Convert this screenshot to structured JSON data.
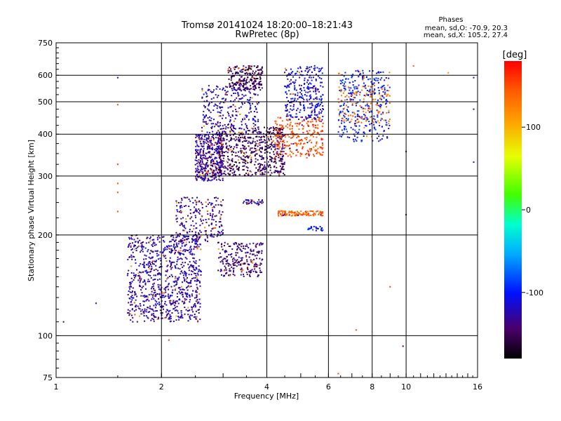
{
  "chart_data": {
    "type": "scatter",
    "title": "Tromsø 20141024 18:20:00–18:21:43",
    "subtitle": "RwPretec (8p)",
    "xlabel": "Frequency [MHz]",
    "ylabel": "Stationary phase Virtual Height [km]",
    "x_scale": "log",
    "y_scale": "log",
    "xlim": [
      1,
      16
    ],
    "ylim": [
      75,
      750
    ],
    "x_ticks": [
      1,
      2,
      4,
      6,
      8,
      10,
      16
    ],
    "x_tick_labels": [
      "1",
      "2",
      "4",
      "6",
      "8",
      "10",
      "16"
    ],
    "y_ticks": [
      75,
      100,
      200,
      300,
      400,
      500,
      600,
      750
    ],
    "y_tick_labels": [
      "75",
      "100",
      "200",
      "300",
      "400",
      "500",
      "600",
      "750"
    ],
    "grid": true,
    "legend": {
      "title": "Phases",
      "line_o": "mean, sd,O: -70.9, 20.3",
      "line_x": "mean, sd,X: 105.2, 27.4",
      "placement": "top-right"
    },
    "colorbar": {
      "label": "[deg]",
      "range": [
        -180,
        180
      ],
      "ticks": [
        100,
        0,
        -100
      ],
      "tick_labels": [
        "100",
        "0",
        "-100"
      ],
      "placement": "right"
    },
    "clusters": [
      {
        "f": [
          1.6,
          2.6
        ],
        "h": [
          110,
          200
        ],
        "phase": -125,
        "count": 900
      },
      {
        "f": [
          2.2,
          3.0
        ],
        "h": [
          190,
          260
        ],
        "phase": -130,
        "count": 220
      },
      {
        "f": [
          2.9,
          3.9
        ],
        "h": [
          150,
          190
        ],
        "phase": -140,
        "count": 240
      },
      {
        "f": [
          2.5,
          3.0
        ],
        "h": [
          290,
          400
        ],
        "phase": -130,
        "count": 420
      },
      {
        "f": [
          2.9,
          4.5
        ],
        "h": [
          300,
          420
        ],
        "phase": -148,
        "count": 600
      },
      {
        "f": [
          2.6,
          3.8
        ],
        "h": [
          400,
          560
        ],
        "phase": -120,
        "count": 280
      },
      {
        "f": [
          3.1,
          3.9
        ],
        "h": [
          540,
          640
        ],
        "phase": -150,
        "count": 220
      },
      {
        "f": [
          4.2,
          5.8
        ],
        "h": [
          340,
          450
        ],
        "phase": 150,
        "count": 260
      },
      {
        "f": [
          4.5,
          5.8
        ],
        "h": [
          440,
          640
        ],
        "phase": -110,
        "count": 300
      },
      {
        "f": [
          6.4,
          9.0
        ],
        "h": [
          380,
          620
        ],
        "phase": -100,
        "count": 320
      },
      {
        "f": [
          6.4,
          9.0
        ],
        "h": [
          430,
          560
        ],
        "phase": 130,
        "count": 120
      },
      {
        "f": [
          4.3,
          5.8
        ],
        "h": [
          228,
          236
        ],
        "phase": 140,
        "count": 120
      },
      {
        "f": [
          3.4,
          3.9
        ],
        "h": [
          245,
          255
        ],
        "phase": -120,
        "count": 40
      },
      {
        "f": [
          5.2,
          5.8
        ],
        "h": [
          205,
          212
        ],
        "phase": -100,
        "count": 25
      }
    ],
    "scattered_points": [
      {
        "f": 1.05,
        "h": 110,
        "phase": -150
      },
      {
        "f": 1.3,
        "h": 125,
        "phase": -100
      },
      {
        "f": 1.5,
        "h": 590,
        "phase": -110
      },
      {
        "f": 1.5,
        "h": 490,
        "phase": 150
      },
      {
        "f": 1.5,
        "h": 325,
        "phase": 160
      },
      {
        "f": 1.5,
        "h": 285,
        "phase": 150
      },
      {
        "f": 1.5,
        "h": 268,
        "phase": 150
      },
      {
        "f": 1.5,
        "h": 235,
        "phase": 150
      },
      {
        "f": 2.1,
        "h": 97,
        "phase": 160
      },
      {
        "f": 6.4,
        "h": 77,
        "phase": 150
      },
      {
        "f": 7.2,
        "h": 104,
        "phase": 150
      },
      {
        "f": 9.8,
        "h": 93,
        "phase": -150
      },
      {
        "f": 9.0,
        "h": 140,
        "phase": 160
      },
      {
        "f": 10.5,
        "h": 640,
        "phase": 140
      },
      {
        "f": 13.2,
        "h": 610,
        "phase": 120
      },
      {
        "f": 15.6,
        "h": 590,
        "phase": -120
      },
      {
        "f": 15.6,
        "h": 475,
        "phase": -130
      },
      {
        "f": 15.6,
        "h": 330,
        "phase": -120
      },
      {
        "f": 10.0,
        "h": 230,
        "phase": -160
      },
      {
        "f": 10.0,
        "h": 355,
        "phase": -120
      }
    ]
  }
}
